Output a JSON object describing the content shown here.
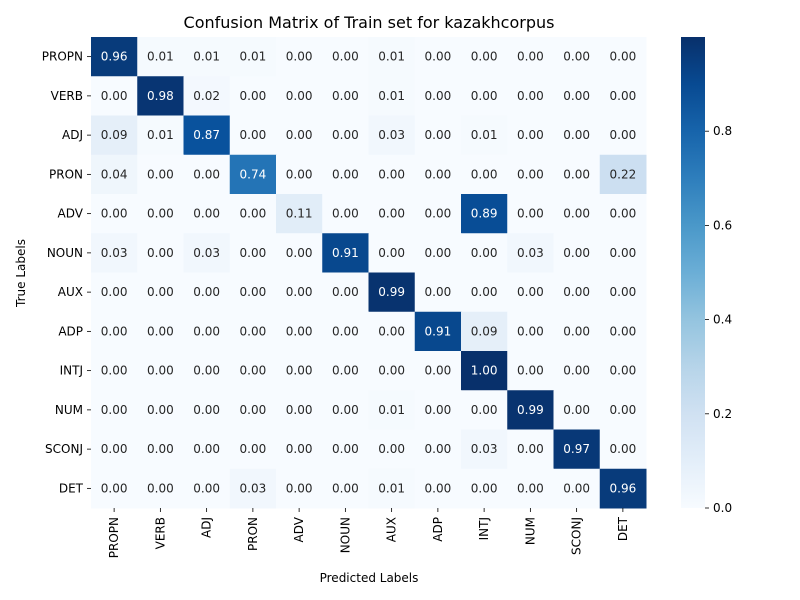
{
  "chart_data": {
    "type": "heatmap",
    "title": "Confusion Matrix of Train set for kazakhcorpus",
    "xlabel": "Predicted Labels",
    "ylabel": "True Labels",
    "x_categories": [
      "PROPN",
      "VERB",
      "ADJ",
      "PRON",
      "ADV",
      "NOUN",
      "AUX",
      "ADP",
      "INTJ",
      "NUM",
      "SCONJ",
      "DET"
    ],
    "y_categories": [
      "PROPN",
      "VERB",
      "ADJ",
      "PRON",
      "ADV",
      "NOUN",
      "AUX",
      "ADP",
      "INTJ",
      "NUM",
      "SCONJ",
      "DET"
    ],
    "values": [
      [
        0.96,
        0.01,
        0.01,
        0.01,
        0.0,
        0.0,
        0.01,
        0.0,
        0.0,
        0.0,
        0.0,
        0.0
      ],
      [
        0.0,
        0.98,
        0.02,
        0.0,
        0.0,
        0.0,
        0.01,
        0.0,
        0.0,
        0.0,
        0.0,
        0.0
      ],
      [
        0.09,
        0.01,
        0.87,
        0.0,
        0.0,
        0.0,
        0.03,
        0.0,
        0.01,
        0.0,
        0.0,
        0.0
      ],
      [
        0.04,
        0.0,
        0.0,
        0.74,
        0.0,
        0.0,
        0.0,
        0.0,
        0.0,
        0.0,
        0.0,
        0.22
      ],
      [
        0.0,
        0.0,
        0.0,
        0.0,
        0.11,
        0.0,
        0.0,
        0.0,
        0.89,
        0.0,
        0.0,
        0.0
      ],
      [
        0.03,
        0.0,
        0.03,
        0.0,
        0.0,
        0.91,
        0.0,
        0.0,
        0.0,
        0.03,
        0.0,
        0.0
      ],
      [
        0.0,
        0.0,
        0.0,
        0.0,
        0.0,
        0.0,
        0.99,
        0.0,
        0.0,
        0.0,
        0.0,
        0.0
      ],
      [
        0.0,
        0.0,
        0.0,
        0.0,
        0.0,
        0.0,
        0.0,
        0.91,
        0.09,
        0.0,
        0.0,
        0.0
      ],
      [
        0.0,
        0.0,
        0.0,
        0.0,
        0.0,
        0.0,
        0.0,
        0.0,
        1.0,
        0.0,
        0.0,
        0.0
      ],
      [
        0.0,
        0.0,
        0.0,
        0.0,
        0.0,
        0.0,
        0.01,
        0.0,
        0.0,
        0.99,
        0.0,
        0.0
      ],
      [
        0.0,
        0.0,
        0.0,
        0.0,
        0.0,
        0.0,
        0.0,
        0.0,
        0.03,
        0.0,
        0.97,
        0.0
      ],
      [
        0.0,
        0.0,
        0.0,
        0.03,
        0.0,
        0.0,
        0.01,
        0.0,
        0.0,
        0.0,
        0.0,
        0.96
      ]
    ],
    "value_format": "0.00",
    "colorscale": "Blues",
    "color_min": "#f7fbff",
    "color_max": "#08306b",
    "vmin": 0.0,
    "vmax": 1.0,
    "colorbar_ticks": [
      "0.0",
      "0.2",
      "0.4",
      "0.6",
      "0.8"
    ],
    "colorbar_tick_values": [
      0.0,
      0.2,
      0.4,
      0.6,
      0.8
    ],
    "grid": false
  }
}
